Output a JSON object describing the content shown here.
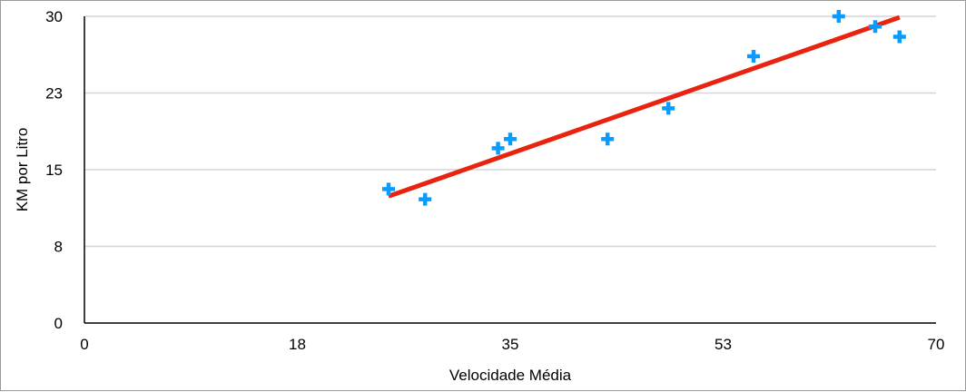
{
  "chart_data": {
    "type": "scatter",
    "xlabel": "Velocidade Média",
    "ylabel": "KM por Litro",
    "xlim": [
      0,
      70
    ],
    "ylim": [
      0,
      30
    ],
    "x_ticks": [
      0,
      17.5,
      35,
      52.5,
      70
    ],
    "x_tick_labels": [
      "0",
      "18",
      "35",
      "53",
      "70"
    ],
    "y_ticks": [
      0,
      7.5,
      15,
      22.5,
      30
    ],
    "y_tick_labels": [
      "0",
      "8",
      "15",
      "23",
      "30"
    ],
    "grid": "horizontal",
    "legend": "none",
    "series": [
      {
        "marker": "plus",
        "color": "#0a9bff",
        "x": [
          25,
          28,
          34,
          35,
          43,
          48,
          55,
          62,
          65,
          67
        ],
        "y": [
          13.1,
          12.1,
          17.1,
          18.0,
          18.0,
          21.0,
          26.1,
          30.0,
          29.0,
          28.0
        ]
      }
    ],
    "trendline": {
      "type": "linear",
      "color": "#e8230f",
      "x": [
        25,
        67
      ],
      "y": [
        12.4,
        29.9
      ]
    }
  }
}
